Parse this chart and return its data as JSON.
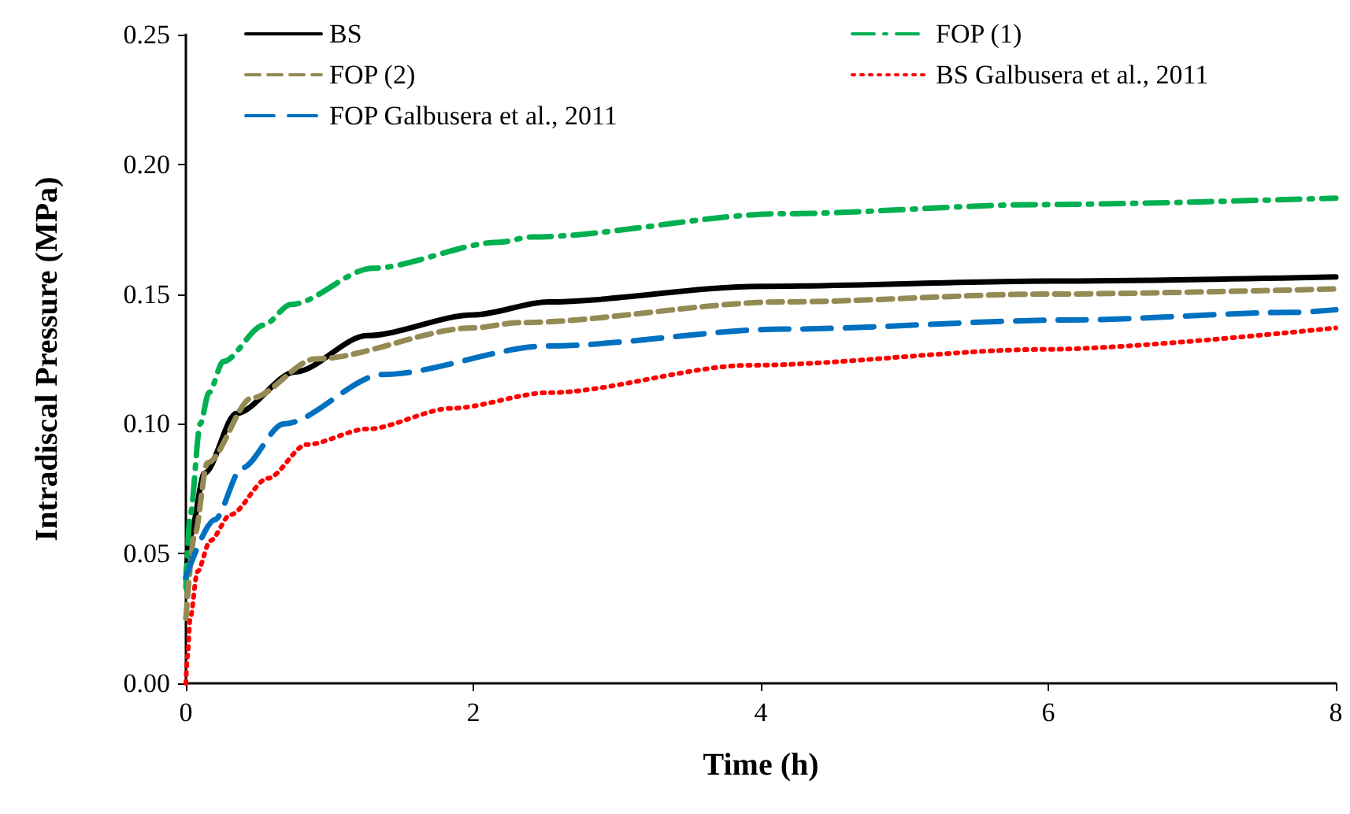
{
  "chart_data": {
    "type": "line",
    "xlabel": "Time (h)",
    "ylabel": "Intradiscal Pressure (MPa)",
    "xlim": [
      0,
      8
    ],
    "xticks": [
      0,
      2,
      4,
      6,
      8
    ],
    "ylim": [
      0,
      0.25
    ],
    "yticks": [
      {
        "value": 0,
        "label": "0.00"
      },
      {
        "value": 0.05,
        "label": "0.05"
      },
      {
        "value": 0.1,
        "label": "0.10"
      },
      {
        "value": 0.15,
        "label": "0.15"
      },
      {
        "value": 0.2,
        "label": "0.20"
      },
      {
        "value": 0.25,
        "label": "0.25"
      }
    ],
    "grid": false,
    "legend": "top",
    "marker": "none",
    "series": [
      {
        "name": "BS",
        "color": "#000000",
        "line_style": "solid",
        "x": [
          0,
          0.03,
          0.13,
          0.35,
          0.76,
          1.26,
          2.0,
          2.52,
          4.0,
          6.0,
          8.0
        ],
        "values": [
          0.04,
          0.057,
          0.081,
          0.104,
          0.12,
          0.134,
          0.142,
          0.147,
          0.153,
          0.155,
          0.1566
        ]
      },
      {
        "name": "FOP (1)",
        "color": "#00b050",
        "line_style": "dashdot",
        "x": [
          0,
          0.03,
          0.1,
          0.16,
          0.26,
          0.54,
          0.73,
          1.3,
          2.18,
          2.4,
          4.16,
          5.94,
          8.0
        ],
        "values": [
          0.037,
          0.065,
          0.1,
          0.112,
          0.124,
          0.138,
          0.146,
          0.16,
          0.17,
          0.172,
          0.181,
          0.1845,
          0.187
        ]
      },
      {
        "name": "FOP (2)",
        "color": "#948a54",
        "line_style": "dashed",
        "x": [
          0,
          0.06,
          0.15,
          0.46,
          0.9,
          2.0,
          2.32,
          4.15,
          5.97,
          8.0
        ],
        "values": [
          0.025,
          0.057,
          0.085,
          0.11,
          0.125,
          0.137,
          0.139,
          0.147,
          0.15,
          0.152
        ]
      },
      {
        "name": "BS Galbusera et al., 2011",
        "color": "#ff0000",
        "line_style": "dotted",
        "x": [
          0,
          0.01,
          0.03,
          0.08,
          0.17,
          0.31,
          0.57,
          0.84,
          1.26,
          1.85,
          2.52,
          3.93,
          5.97,
          8.0
        ],
        "values": [
          0,
          0.01,
          0.025,
          0.043,
          0.055,
          0.065,
          0.079,
          0.092,
          0.098,
          0.106,
          0.112,
          0.1226,
          0.1287,
          0.137
        ]
      },
      {
        "name": "FOP Galbusera et al., 2011",
        "color": "#0070c0",
        "line_style": "dashed",
        "x": [
          0,
          0.2,
          0.39,
          0.68,
          1.37,
          2.52,
          4.15,
          6.13,
          7.73,
          8.0
        ],
        "values": [
          0.041,
          0.063,
          0.083,
          0.1,
          0.119,
          0.13,
          0.1365,
          0.14,
          0.143,
          0.144
        ]
      }
    ]
  }
}
